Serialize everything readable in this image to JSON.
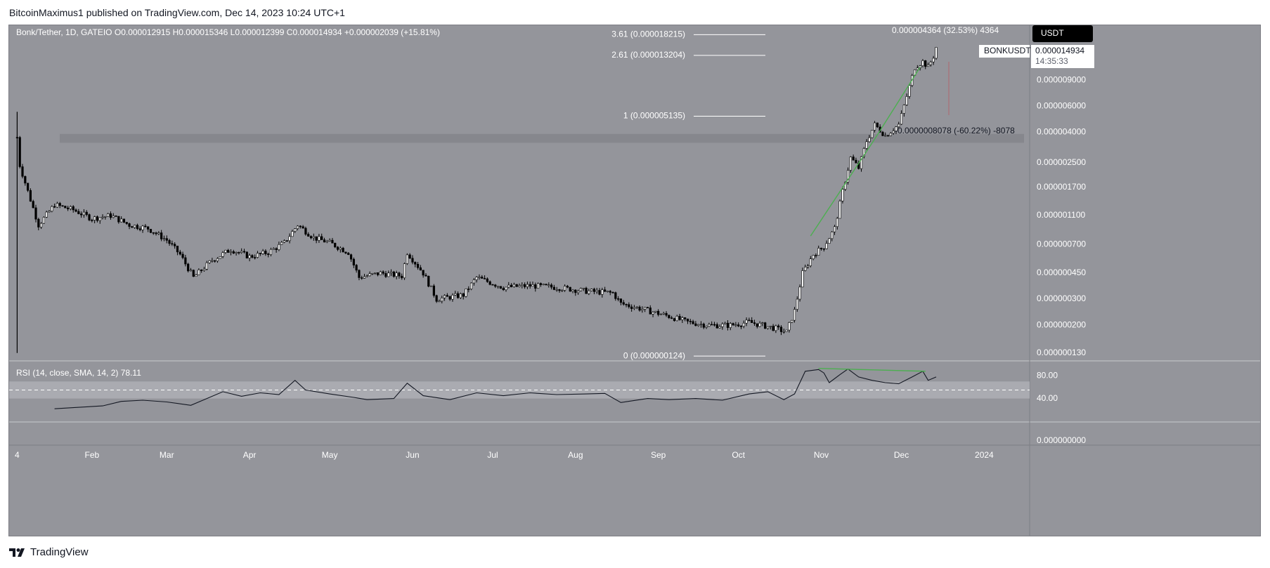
{
  "publisher_line": "BitcoinMaximus1 published on TradingView.com, Dec 14, 2023 10:24 UTC+1",
  "footer": {
    "brand": "TradingView",
    "logo_icon": "tradingview-logo-icon"
  },
  "colors": {
    "panel_bg": "#94959b",
    "candle": "#000000",
    "fib_line": "#ffffff",
    "trendline": "#4caf50",
    "support_zone": "#84858b",
    "rsi_band": "#b4b5ba",
    "currency_badge": "#000000"
  },
  "chart_data": [
    {
      "type": "candlestick",
      "title": "Bonk/Tether, 1D, GATEIO",
      "ohlc": {
        "O": "0.000012915",
        "H": "0.000015346",
        "L": "0.000012399",
        "C": "0.000014934",
        "change": "+0.000002039 (+15.81%)"
      },
      "symbol": "BONKUSDT",
      "currency": "USDT",
      "last_price": "0.000014934",
      "countdown": "14:35:33",
      "y_scale": "log",
      "y_ticks": [
        "0.000009000",
        "0.000006000",
        "0.000004000",
        "0.000002500",
        "0.000001700",
        "0.000001100",
        "0.000000700",
        "0.000000450",
        "0.000000300",
        "0.000000200",
        "0.000000130"
      ],
      "y_tick_values": [
        9e-06,
        6e-06,
        4e-06,
        2.5e-06,
        1.7e-06,
        1.1e-06,
        7e-07,
        4.5e-07,
        3e-07,
        2e-07,
        1.3e-07
      ],
      "x_ticks": [
        "4",
        "Feb",
        "Mar",
        "Apr",
        "May",
        "Jun",
        "Jul",
        "Aug",
        "Sep",
        "Oct",
        "Nov",
        "Dec",
        "2024"
      ],
      "x_tick_dates": [
        "2023-01-04",
        "2023-02-01",
        "2023-03-01",
        "2023-04-01",
        "2023-05-01",
        "2023-06-01",
        "2023-07-01",
        "2023-08-01",
        "2023-09-01",
        "2023-10-01",
        "2023-11-01",
        "2023-12-01",
        "2024-01-01"
      ],
      "x_range": [
        "2023-01-01",
        "2024-01-18"
      ],
      "y_range": [
        1.15e-07,
        1.85e-05
      ],
      "series": [
        {
          "x": "2023-01-04",
          "y": 3.7e-06
        },
        {
          "x": "2023-01-05",
          "y": 2.4e-06
        },
        {
          "x": "2023-01-08",
          "y": 1.6e-06
        },
        {
          "x": "2023-01-12",
          "y": 9.5e-07
        },
        {
          "x": "2023-01-18",
          "y": 1.3e-06
        },
        {
          "x": "2023-01-25",
          "y": 1.2e-06
        },
        {
          "x": "2023-02-01",
          "y": 1.05e-06
        },
        {
          "x": "2023-02-08",
          "y": 1.1e-06
        },
        {
          "x": "2023-02-15",
          "y": 9.5e-07
        },
        {
          "x": "2023-02-22",
          "y": 9e-07
        },
        {
          "x": "2023-03-01",
          "y": 7.5e-07
        },
        {
          "x": "2023-03-06",
          "y": 6e-07
        },
        {
          "x": "2023-03-11",
          "y": 4.2e-07
        },
        {
          "x": "2023-03-18",
          "y": 5.5e-07
        },
        {
          "x": "2023-03-25",
          "y": 6.5e-07
        },
        {
          "x": "2023-04-01",
          "y": 5.8e-07
        },
        {
          "x": "2023-04-08",
          "y": 6.2e-07
        },
        {
          "x": "2023-04-14",
          "y": 7.2e-07
        },
        {
          "x": "2023-04-19",
          "y": 9.5e-07
        },
        {
          "x": "2023-04-25",
          "y": 7.8e-07
        },
        {
          "x": "2023-05-01",
          "y": 7.2e-07
        },
        {
          "x": "2023-05-08",
          "y": 6.2e-07
        },
        {
          "x": "2023-05-12",
          "y": 4.2e-07
        },
        {
          "x": "2023-05-20",
          "y": 4.5e-07
        },
        {
          "x": "2023-05-28",
          "y": 4.3e-07
        },
        {
          "x": "2023-05-30",
          "y": 6.2e-07
        },
        {
          "x": "2023-06-05",
          "y": 4.5e-07
        },
        {
          "x": "2023-06-10",
          "y": 3e-07
        },
        {
          "x": "2023-06-20",
          "y": 3.2e-07
        },
        {
          "x": "2023-06-25",
          "y": 4.2e-07
        },
        {
          "x": "2023-07-05",
          "y": 3.6e-07
        },
        {
          "x": "2023-07-15",
          "y": 3.7e-07
        },
        {
          "x": "2023-07-25",
          "y": 3.6e-07
        },
        {
          "x": "2023-08-05",
          "y": 3.4e-07
        },
        {
          "x": "2023-08-15",
          "y": 3.3e-07
        },
        {
          "x": "2023-08-18",
          "y": 2.8e-07
        },
        {
          "x": "2023-08-25",
          "y": 2.6e-07
        },
        {
          "x": "2023-09-05",
          "y": 2.3e-07
        },
        {
          "x": "2023-09-12",
          "y": 2.1e-07
        },
        {
          "x": "2023-09-20",
          "y": 2e-07
        },
        {
          "x": "2023-09-28",
          "y": 2e-07
        },
        {
          "x": "2023-10-05",
          "y": 2.1e-07
        },
        {
          "x": "2023-10-15",
          "y": 1.9e-07
        },
        {
          "x": "2023-10-19",
          "y": 1.8e-07
        },
        {
          "x": "2023-10-22",
          "y": 2.5e-07
        },
        {
          "x": "2023-10-25",
          "y": 4.5e-07
        },
        {
          "x": "2023-10-29",
          "y": 6e-07
        },
        {
          "x": "2023-11-02",
          "y": 6.8e-07
        },
        {
          "x": "2023-11-06",
          "y": 9e-07
        },
        {
          "x": "2023-11-09",
          "y": 1.6e-06
        },
        {
          "x": "2023-11-12",
          "y": 2.7e-06
        },
        {
          "x": "2023-11-15",
          "y": 2.3e-06
        },
        {
          "x": "2023-11-18",
          "y": 3.5e-06
        },
        {
          "x": "2023-11-21",
          "y": 4.5e-06
        },
        {
          "x": "2023-11-25",
          "y": 3.8e-06
        },
        {
          "x": "2023-11-30",
          "y": 4.5e-06
        },
        {
          "x": "2023-12-03",
          "y": 7e-06
        },
        {
          "x": "2023-12-06",
          "y": 1.1e-05
        },
        {
          "x": "2023-12-09",
          "y": 1.2e-05
        },
        {
          "x": "2023-12-11",
          "y": 1.1e-05
        },
        {
          "x": "2023-12-13",
          "y": 1.3e-05
        },
        {
          "x": "2023-12-14",
          "y": 1.5e-05
        }
      ],
      "fib_levels": [
        {
          "label": "3.61 (0.000018215)",
          "value": 1.8215e-05
        },
        {
          "label": "2.61 (0.000013204)",
          "value": 1.3204e-05
        },
        {
          "label": "1 (0.000005135)",
          "value": 5.135e-06
        },
        {
          "label": "0 (0.000000124)",
          "value": 1.24e-07
        }
      ],
      "support_zone": {
        "low": 3.4e-06,
        "high": 3.9e-06
      },
      "annotations": {
        "upper_measure": "0.000004364 (32.53%) 4364",
        "lower_measure": "-0.0000008078 (-60.22%) -8078"
      },
      "trendlines": [
        {
          "x": [
            "2023-10-28",
            "2023-11-21"
          ],
          "y": [
            8e-07,
            3.6e-06
          ]
        },
        {
          "x": [
            "2023-11-21",
            "2023-12-08"
          ],
          "y": [
            3.6e-06,
            1.1e-05
          ]
        }
      ]
    },
    {
      "type": "line",
      "title": "RSI (14, close, SMA, 14, 2)",
      "last_value": "78.11",
      "y_ticks": [
        "80.00",
        "40.00",
        "0.000000000"
      ],
      "y_tick_values": [
        80,
        40,
        0
      ],
      "y_range": [
        0,
        105
      ],
      "band": [
        40,
        70
      ],
      "midline": 55,
      "x_range": [
        "2023-01-01",
        "2024-01-18"
      ],
      "series": [
        {
          "x": "2023-01-18",
          "y": 22
        },
        {
          "x": "2023-01-25",
          "y": 24
        },
        {
          "x": "2023-02-05",
          "y": 27
        },
        {
          "x": "2023-02-12",
          "y": 35
        },
        {
          "x": "2023-02-20",
          "y": 37
        },
        {
          "x": "2023-03-01",
          "y": 34
        },
        {
          "x": "2023-03-10",
          "y": 28
        },
        {
          "x": "2023-03-15",
          "y": 38
        },
        {
          "x": "2023-03-22",
          "y": 52
        },
        {
          "x": "2023-03-29",
          "y": 44
        },
        {
          "x": "2023-04-05",
          "y": 50
        },
        {
          "x": "2023-04-12",
          "y": 47
        },
        {
          "x": "2023-04-18",
          "y": 72
        },
        {
          "x": "2023-04-22",
          "y": 55
        },
        {
          "x": "2023-05-01",
          "y": 48
        },
        {
          "x": "2023-05-10",
          "y": 42
        },
        {
          "x": "2023-05-15",
          "y": 38
        },
        {
          "x": "2023-05-25",
          "y": 40
        },
        {
          "x": "2023-05-30",
          "y": 67
        },
        {
          "x": "2023-06-05",
          "y": 45
        },
        {
          "x": "2023-06-15",
          "y": 38
        },
        {
          "x": "2023-06-25",
          "y": 50
        },
        {
          "x": "2023-07-05",
          "y": 45
        },
        {
          "x": "2023-07-15",
          "y": 50
        },
        {
          "x": "2023-07-25",
          "y": 47
        },
        {
          "x": "2023-08-05",
          "y": 48
        },
        {
          "x": "2023-08-12",
          "y": 49
        },
        {
          "x": "2023-08-18",
          "y": 33
        },
        {
          "x": "2023-08-28",
          "y": 40
        },
        {
          "x": "2023-09-05",
          "y": 38
        },
        {
          "x": "2023-09-15",
          "y": 40
        },
        {
          "x": "2023-09-25",
          "y": 37
        },
        {
          "x": "2023-10-05",
          "y": 48
        },
        {
          "x": "2023-10-12",
          "y": 52
        },
        {
          "x": "2023-10-18",
          "y": 38
        },
        {
          "x": "2023-10-22",
          "y": 48
        },
        {
          "x": "2023-10-26",
          "y": 88
        },
        {
          "x": "2023-10-31",
          "y": 91
        },
        {
          "x": "2023-11-02",
          "y": 85
        },
        {
          "x": "2023-11-04",
          "y": 68
        },
        {
          "x": "2023-11-08",
          "y": 82
        },
        {
          "x": "2023-11-11",
          "y": 92
        },
        {
          "x": "2023-11-15",
          "y": 78
        },
        {
          "x": "2023-11-20",
          "y": 72
        },
        {
          "x": "2023-11-25",
          "y": 68
        },
        {
          "x": "2023-11-30",
          "y": 66
        },
        {
          "x": "2023-12-05",
          "y": 78
        },
        {
          "x": "2023-12-09",
          "y": 88
        },
        {
          "x": "2023-12-11",
          "y": 72
        },
        {
          "x": "2023-12-13",
          "y": 76
        },
        {
          "x": "2023-12-14",
          "y": 78
        }
      ],
      "divergence_line": {
        "x": [
          "2023-10-31",
          "2023-12-10"
        ],
        "y": [
          93,
          88
        ]
      }
    }
  ]
}
